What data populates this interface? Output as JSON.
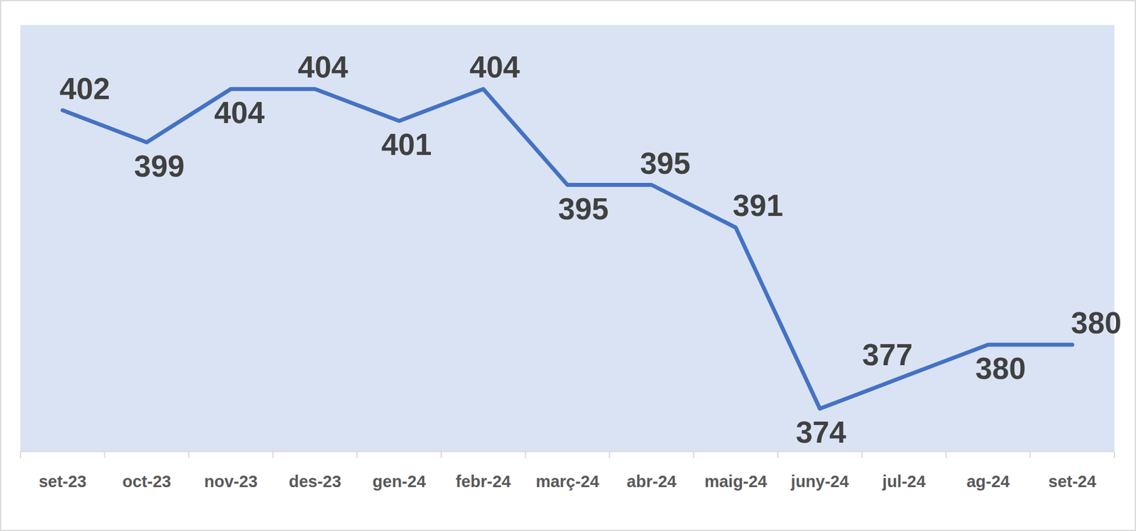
{
  "chart_data": {
    "type": "line",
    "categories": [
      "set-23",
      "oct-23",
      "nov-23",
      "des-23",
      "gen-24",
      "febr-24",
      "març-24",
      "abr-24",
      "maig-24",
      "juny-24",
      "jul-24",
      "ag-24",
      "set-24"
    ],
    "values": [
      402,
      399,
      404,
      404,
      401,
      404,
      395,
      395,
      391,
      374,
      377,
      380,
      380
    ],
    "color": "#4472c4",
    "ylim": [
      370,
      410
    ],
    "yticks": [],
    "grid": false,
    "data_labels": true,
    "tick_labels": "x",
    "marker": "none",
    "line_style": "solid"
  }
}
